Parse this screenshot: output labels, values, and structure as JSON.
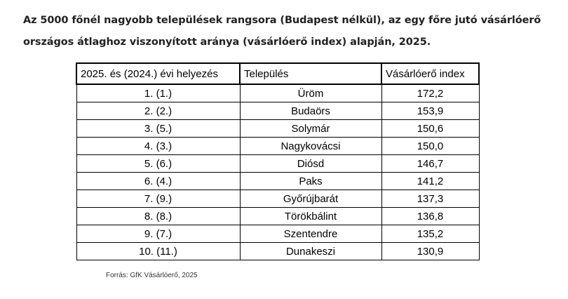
{
  "title": "Az 5000 főnél nagyobb települések rangsora (Budapest nélkül), az egy főre jutó vásárlóerő országos átlaghoz viszonyított aránya (vásárlóerő index) alapján, 2025.",
  "table": {
    "headers": [
      "2025. és (2024.) évi helyezés",
      "Település",
      "Vásárlóerő index"
    ],
    "rows": [
      {
        "rank": "1. (1.)",
        "town": "Üröm",
        "index": "172,2"
      },
      {
        "rank": "2. (2.)",
        "town": "Budaörs",
        "index": "153,9"
      },
      {
        "rank": "3. (5.)",
        "town": "Solymár",
        "index": "150,6"
      },
      {
        "rank": "4. (3.)",
        "town": "Nagykovácsi",
        "index": "150,0"
      },
      {
        "rank": "5. (6.)",
        "town": "Diósd",
        "index": "146,7"
      },
      {
        "rank": "6. (4.)",
        "town": "Paks",
        "index": "141,2"
      },
      {
        "rank": "7. (9.)",
        "town": "Győrújbarát",
        "index": "137,3"
      },
      {
        "rank": "8. (8.)",
        "town": "Törökbálint",
        "index": "136,8"
      },
      {
        "rank": "9. (7.)",
        "town": "Szentendre",
        "index": "135,2"
      },
      {
        "rank": "10. (11.)",
        "town": "Dunakeszi",
        "index": "130,9"
      }
    ]
  },
  "source": "Forrás: GfK Vásárlóerő, 2025"
}
